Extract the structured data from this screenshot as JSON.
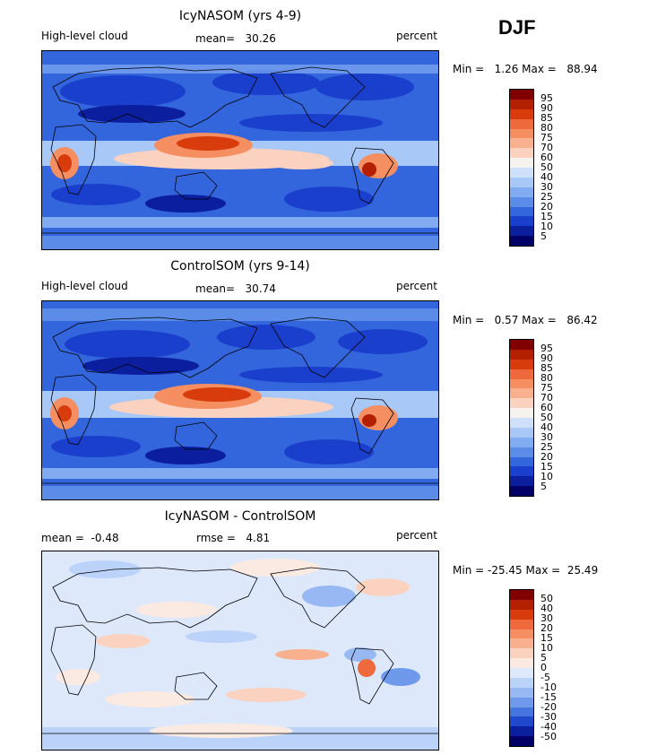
{
  "season": "DJF",
  "chart_data": [
    {
      "type": "heatmap",
      "title": "IcyNASOM (yrs 4-9)",
      "left_label": "High-level cloud",
      "stat_label": "mean=",
      "stat_value": "30.26",
      "units": "percent",
      "min_label": "Min =",
      "min_value": "1.26",
      "max_label": "Max =",
      "max_value": "88.94",
      "colorbar_labels": [
        "95",
        "90",
        "85",
        "80",
        "75",
        "70",
        "60",
        "50",
        "40",
        "30",
        "25",
        "20",
        "15",
        "10",
        "5"
      ],
      "colorbar_colors": [
        "#800000",
        "#b22000",
        "#d83c0c",
        "#ee6a3c",
        "#f58f62",
        "#f9b08f",
        "#fbd2bf",
        "#f6f2ee",
        "#cfe0fb",
        "#a8c8f8",
        "#82acf2",
        "#5a8ce8",
        "#3366dc",
        "#1a3fcc",
        "#0a1e9e",
        "#000066"
      ]
    },
    {
      "type": "heatmap",
      "title": "ControlSOM (yrs 9-14)",
      "left_label": "High-level cloud",
      "stat_label": "mean=",
      "stat_value": "30.74",
      "units": "percent",
      "min_label": "Min =",
      "min_value": "0.57",
      "max_label": "Max =",
      "max_value": "86.42",
      "colorbar_labels": [
        "95",
        "90",
        "85",
        "80",
        "75",
        "70",
        "60",
        "50",
        "40",
        "30",
        "25",
        "20",
        "15",
        "10",
        "5"
      ],
      "colorbar_colors": [
        "#800000",
        "#b22000",
        "#d83c0c",
        "#ee6a3c",
        "#f58f62",
        "#f9b08f",
        "#fbd2bf",
        "#f6f2ee",
        "#cfe0fb",
        "#a8c8f8",
        "#82acf2",
        "#5a8ce8",
        "#3366dc",
        "#1a3fcc",
        "#0a1e9e",
        "#000066"
      ]
    },
    {
      "type": "heatmap",
      "title": "IcyNASOM - ControlSOM",
      "left_label": "mean =",
      "left_value": "-0.48",
      "stat_label": "rmse =",
      "stat_value": "4.81",
      "units": "percent",
      "min_label": "Min =",
      "min_value": "-25.45",
      "max_label": "Max =",
      "max_value": "25.49",
      "colorbar_labels": [
        "50",
        "40",
        "30",
        "20",
        "15",
        "10",
        "5",
        "0",
        "-5",
        "-10",
        "-15",
        "-20",
        "-30",
        "-40",
        "-50"
      ],
      "colorbar_colors": [
        "#800000",
        "#b22000",
        "#d83c0c",
        "#ee6a3c",
        "#f58f62",
        "#f9b08f",
        "#fbd2bf",
        "#fbeae2",
        "#dde8fb",
        "#bcd3f9",
        "#98b8f4",
        "#6f9aec",
        "#4576e0",
        "#1f48cc",
        "#0a1e9e",
        "#000066"
      ]
    }
  ]
}
